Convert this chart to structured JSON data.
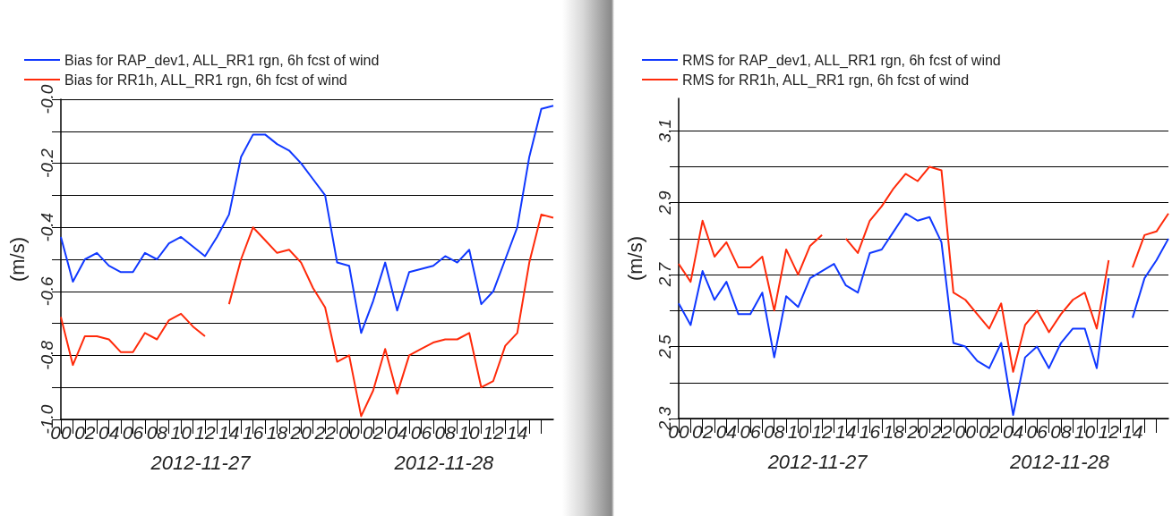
{
  "chart_data": [
    {
      "type": "line",
      "ylabel": "(m/s)",
      "grid": "y",
      "legend": "top left",
      "x": [
        0,
        1,
        2,
        3,
        4,
        5,
        6,
        7,
        8,
        9,
        10,
        11,
        12,
        13,
        14,
        15,
        16,
        17,
        18,
        19,
        20,
        21,
        22,
        23,
        24,
        25,
        26,
        27,
        28,
        29,
        30,
        31,
        32,
        33,
        34,
        35,
        36,
        37,
        38,
        39,
        40,
        41
      ],
      "xlim": [
        0,
        41
      ],
      "xticks": [
        {
          "value": 0,
          "label": "00"
        },
        {
          "value": 1,
          "label": null
        },
        {
          "value": 2,
          "label": "02"
        },
        {
          "value": 3,
          "label": null
        },
        {
          "value": 4,
          "label": "04"
        },
        {
          "value": 5,
          "label": null
        },
        {
          "value": 6,
          "label": "06"
        },
        {
          "value": 7,
          "label": null
        },
        {
          "value": 8,
          "label": "08"
        },
        {
          "value": 9,
          "label": null
        },
        {
          "value": 10,
          "label": "10"
        },
        {
          "value": 11,
          "label": null
        },
        {
          "value": 12,
          "label": "12"
        },
        {
          "value": 13,
          "label": null
        },
        {
          "value": 14,
          "label": "14"
        },
        {
          "value": 15,
          "label": null
        },
        {
          "value": 16,
          "label": "16"
        },
        {
          "value": 17,
          "label": null
        },
        {
          "value": 18,
          "label": "18"
        },
        {
          "value": 19,
          "label": null
        },
        {
          "value": 20,
          "label": "20"
        },
        {
          "value": 21,
          "label": null
        },
        {
          "value": 22,
          "label": "22"
        },
        {
          "value": 23,
          "label": null
        },
        {
          "value": 24,
          "label": "00"
        },
        {
          "value": 25,
          "label": null
        },
        {
          "value": 26,
          "label": "02"
        },
        {
          "value": 27,
          "label": null
        },
        {
          "value": 28,
          "label": "04"
        },
        {
          "value": 29,
          "label": null
        },
        {
          "value": 30,
          "label": "06"
        },
        {
          "value": 31,
          "label": null
        },
        {
          "value": 32,
          "label": "08"
        },
        {
          "value": 33,
          "label": null
        },
        {
          "value": 34,
          "label": "10"
        },
        {
          "value": 35,
          "label": null
        },
        {
          "value": 36,
          "label": "12"
        },
        {
          "value": 37,
          "label": null
        },
        {
          "value": 38,
          "label": "14"
        },
        {
          "value": 39,
          "label": null
        },
        {
          "value": 40,
          "label": null
        }
      ],
      "annotations": [
        "2012-11-27",
        "2012-11-28"
      ],
      "ylim": [
        -1.0,
        0.0
      ],
      "yticks": [
        {
          "value": -1.0,
          "label": "-1.0"
        },
        {
          "value": -0.9,
          "label": null
        },
        {
          "value": -0.8,
          "label": "-0.8"
        },
        {
          "value": -0.7,
          "label": null
        },
        {
          "value": -0.6,
          "label": "-0.6"
        },
        {
          "value": -0.5,
          "label": null
        },
        {
          "value": -0.4,
          "label": "-0.4"
        },
        {
          "value": -0.3,
          "label": null
        },
        {
          "value": -0.2,
          "label": "-0.2"
        },
        {
          "value": -0.1,
          "label": null
        },
        {
          "value": 0.0,
          "label": "-0.0"
        }
      ],
      "series": [
        {
          "name": "Bias for RAP_dev1, ALL_RR1 rgn, 6h fcst of wind",
          "color": "#1038ff",
          "values": [
            -0.43,
            -0.57,
            -0.5,
            -0.48,
            -0.52,
            -0.54,
            -0.54,
            -0.48,
            -0.5,
            -0.45,
            -0.43,
            -0.46,
            -0.49,
            -0.43,
            -0.36,
            -0.18,
            -0.11,
            -0.11,
            -0.14,
            -0.16,
            -0.2,
            -0.25,
            -0.3,
            -0.51,
            -0.52,
            -0.73,
            -0.63,
            -0.51,
            -0.66,
            -0.54,
            -0.53,
            -0.52,
            -0.49,
            -0.51,
            -0.47,
            -0.64,
            -0.6,
            -0.5,
            -0.4,
            -0.18,
            -0.03,
            -0.02
          ]
        },
        {
          "name": "Bias for RR1h, ALL_RR1 rgn, 6h fcst of wind",
          "color": "#ff2a0a",
          "values": [
            -0.68,
            -0.83,
            -0.74,
            -0.74,
            -0.75,
            -0.79,
            -0.79,
            -0.73,
            -0.75,
            -0.69,
            -0.67,
            -0.71,
            -0.74,
            null,
            -0.64,
            -0.5,
            -0.4,
            -0.44,
            -0.48,
            -0.47,
            -0.51,
            -0.59,
            -0.65,
            -0.82,
            -0.8,
            -0.99,
            -0.91,
            -0.78,
            -0.92,
            -0.8,
            -0.78,
            -0.76,
            -0.75,
            -0.75,
            -0.73,
            -0.9,
            -0.88,
            -0.77,
            -0.73,
            -0.51,
            -0.36,
            -0.37
          ]
        }
      ]
    },
    {
      "type": "line",
      "ylabel": "(m/s)",
      "grid": "y",
      "legend": "top left",
      "x": [
        0,
        1,
        2,
        3,
        4,
        5,
        6,
        7,
        8,
        9,
        10,
        11,
        12,
        13,
        14,
        15,
        16,
        17,
        18,
        19,
        20,
        21,
        22,
        23,
        24,
        25,
        26,
        27,
        28,
        29,
        30,
        31,
        32,
        33,
        34,
        35,
        36,
        37,
        38,
        39,
        40,
        41
      ],
      "xlim": [
        0,
        41
      ],
      "xticks": [
        {
          "value": 0,
          "label": "00"
        },
        {
          "value": 1,
          "label": null
        },
        {
          "value": 2,
          "label": "02"
        },
        {
          "value": 3,
          "label": null
        },
        {
          "value": 4,
          "label": "04"
        },
        {
          "value": 5,
          "label": null
        },
        {
          "value": 6,
          "label": "06"
        },
        {
          "value": 7,
          "label": null
        },
        {
          "value": 8,
          "label": "08"
        },
        {
          "value": 9,
          "label": null
        },
        {
          "value": 10,
          "label": "10"
        },
        {
          "value": 11,
          "label": null
        },
        {
          "value": 12,
          "label": "12"
        },
        {
          "value": 13,
          "label": null
        },
        {
          "value": 14,
          "label": "14"
        },
        {
          "value": 15,
          "label": null
        },
        {
          "value": 16,
          "label": "16"
        },
        {
          "value": 17,
          "label": null
        },
        {
          "value": 18,
          "label": "18"
        },
        {
          "value": 19,
          "label": null
        },
        {
          "value": 20,
          "label": "20"
        },
        {
          "value": 21,
          "label": null
        },
        {
          "value": 22,
          "label": "22"
        },
        {
          "value": 23,
          "label": null
        },
        {
          "value": 24,
          "label": "00"
        },
        {
          "value": 25,
          "label": null
        },
        {
          "value": 26,
          "label": "02"
        },
        {
          "value": 27,
          "label": null
        },
        {
          "value": 28,
          "label": "04"
        },
        {
          "value": 29,
          "label": null
        },
        {
          "value": 30,
          "label": "06"
        },
        {
          "value": 31,
          "label": null
        },
        {
          "value": 32,
          "label": "08"
        },
        {
          "value": 33,
          "label": null
        },
        {
          "value": 34,
          "label": "10"
        },
        {
          "value": 35,
          "label": null
        },
        {
          "value": 36,
          "label": "12"
        },
        {
          "value": 37,
          "label": null
        },
        {
          "value": 38,
          "label": "14"
        },
        {
          "value": 39,
          "label": null
        },
        {
          "value": 40,
          "label": null
        }
      ],
      "annotations": [
        "2012-11-27",
        "2012-11-28"
      ],
      "ylim": [
        2.3,
        3.19
      ],
      "yticks": [
        {
          "value": 2.3,
          "label": "2.3"
        },
        {
          "value": 2.4,
          "label": null
        },
        {
          "value": 2.5,
          "label": "2.5"
        },
        {
          "value": 2.6,
          "label": null
        },
        {
          "value": 2.7,
          "label": "2.7"
        },
        {
          "value": 2.8,
          "label": null
        },
        {
          "value": 2.9,
          "label": "2.9"
        },
        {
          "value": 3.0,
          "label": null
        },
        {
          "value": 3.1,
          "label": "3.1"
        }
      ],
      "series": [
        {
          "name": "RMS for RAP_dev1, ALL_RR1 rgn, 6h fcst of wind",
          "color": "#1038ff",
          "values": [
            2.62,
            2.56,
            2.71,
            2.63,
            2.68,
            2.59,
            2.59,
            2.65,
            2.47,
            2.64,
            2.61,
            2.69,
            2.71,
            2.73,
            2.67,
            2.65,
            2.76,
            2.77,
            2.82,
            2.87,
            2.85,
            2.86,
            2.79,
            2.51,
            2.5,
            2.46,
            2.44,
            2.51,
            2.31,
            2.47,
            2.5,
            2.44,
            2.51,
            2.55,
            2.55,
            2.44,
            2.69,
            null,
            2.58,
            2.69,
            2.74,
            2.8
          ]
        },
        {
          "name": "RMS for RR1h, ALL_RR1 rgn, 6h fcst of wind",
          "color": "#ff2a0a",
          "values": [
            2.73,
            2.68,
            2.85,
            2.75,
            2.79,
            2.72,
            2.72,
            2.75,
            2.6,
            2.77,
            2.7,
            2.78,
            2.81,
            null,
            2.8,
            2.76,
            2.85,
            2.89,
            2.94,
            2.98,
            2.96,
            3.0,
            2.99,
            2.65,
            2.63,
            2.59,
            2.55,
            2.62,
            2.43,
            2.56,
            2.6,
            2.54,
            2.59,
            2.63,
            2.65,
            2.55,
            2.74,
            null,
            2.72,
            2.81,
            2.82,
            2.87
          ]
        }
      ]
    }
  ]
}
